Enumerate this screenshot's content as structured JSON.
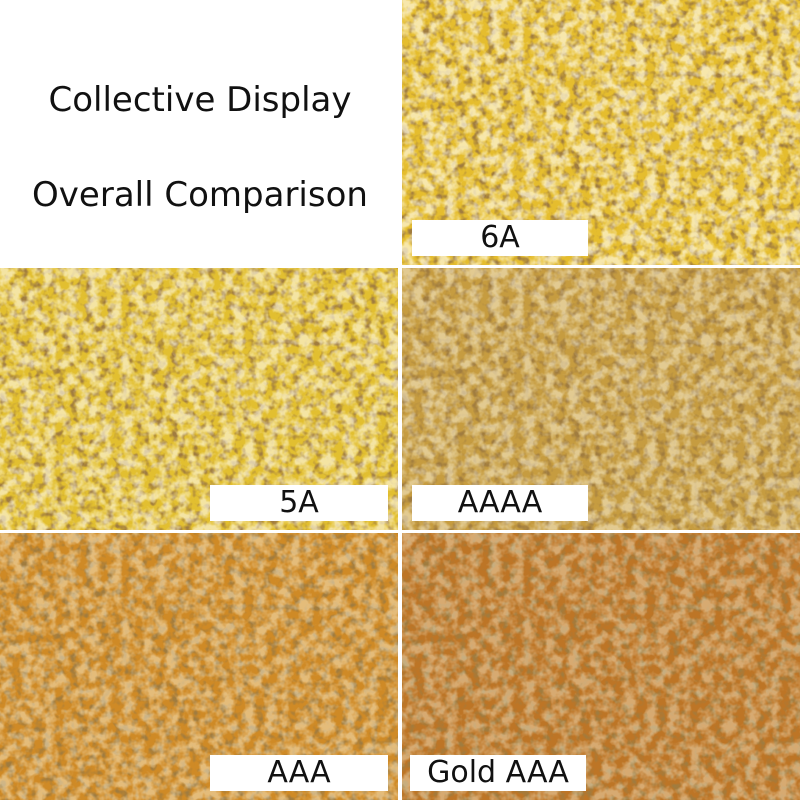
{
  "header": {
    "line1": "Collective Display",
    "line2": "Overall Comparison"
  },
  "tiles": [
    {
      "label": "6A"
    },
    {
      "label": "5A"
    },
    {
      "label": "AAAA"
    },
    {
      "label": "AAA"
    },
    {
      "label": "Gold AAA"
    }
  ]
}
